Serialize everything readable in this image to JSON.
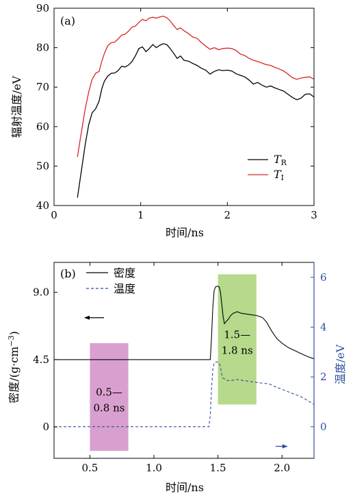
{
  "colors": {
    "black": "#000000",
    "red": "#d62728",
    "blue": "#2b4d9c",
    "pink_box": "#d9a0cf",
    "green_box": "#b7d98b"
  },
  "chart_data": [
    {
      "type": "line",
      "panel_label": "(a)",
      "xlabel": "时间/ns",
      "ylabel": "辐射温度/eV",
      "xlim": [
        0,
        3
      ],
      "ylim": [
        40,
        90
      ],
      "x_ticks": [
        "0",
        "1",
        "2",
        "3"
      ],
      "y_ticks": [
        "40",
        "50",
        "60",
        "70",
        "80",
        "90"
      ],
      "x_tick_values": [
        0,
        1,
        2,
        3
      ],
      "y_tick_values": [
        40,
        50,
        60,
        70,
        80,
        90
      ],
      "legend": {
        "placement": "lower-right",
        "entries": [
          {
            "base": "T",
            "sub": "R"
          },
          {
            "base": "T",
            "sub": "I"
          }
        ]
      },
      "series": [
        {
          "name": "TR",
          "color": "#000000",
          "x": [
            0.27,
            0.3,
            0.33,
            0.36,
            0.4,
            0.44,
            0.48,
            0.52,
            0.55,
            0.58,
            0.62,
            0.66,
            0.7,
            0.74,
            0.78,
            0.82,
            0.86,
            0.9,
            0.94,
            0.98,
            1.02,
            1.06,
            1.1,
            1.14,
            1.18,
            1.22,
            1.26,
            1.3,
            1.34,
            1.38,
            1.42,
            1.46,
            1.5,
            1.55,
            1.6,
            1.65,
            1.7,
            1.75,
            1.8,
            1.85,
            1.9,
            1.95,
            2.0,
            2.05,
            2.1,
            2.15,
            2.2,
            2.25,
            2.3,
            2.35,
            2.4,
            2.45,
            2.5,
            2.55,
            2.6,
            2.65,
            2.7,
            2.75,
            2.8,
            2.85,
            2.9,
            2.95,
            3.0
          ],
          "y": [
            42.0,
            46.5,
            51.0,
            55.5,
            60.5,
            63.5,
            64.5,
            66.5,
            69.5,
            71.5,
            72.8,
            73.5,
            73.6,
            74.2,
            75.3,
            75.1,
            75.6,
            76.5,
            78.0,
            79.8,
            80.2,
            79.0,
            79.8,
            80.8,
            80.0,
            80.6,
            81.0,
            80.8,
            79.8,
            78.6,
            77.3,
            77.9,
            76.8,
            76.6,
            76.0,
            75.5,
            74.8,
            74.3,
            73.3,
            74.0,
            74.4,
            74.2,
            74.3,
            74.1,
            73.4,
            73.0,
            72.6,
            71.8,
            70.8,
            71.2,
            70.5,
            70.0,
            70.3,
            69.8,
            69.4,
            69.0,
            68.2,
            67.4,
            66.8,
            67.2,
            68.2,
            68.3,
            67.5
          ]
        },
        {
          "name": "TI",
          "color": "#d62728",
          "x": [
            0.27,
            0.3,
            0.33,
            0.36,
            0.4,
            0.44,
            0.48,
            0.52,
            0.55,
            0.58,
            0.62,
            0.66,
            0.7,
            0.74,
            0.78,
            0.82,
            0.86,
            0.9,
            0.94,
            0.98,
            1.02,
            1.06,
            1.1,
            1.14,
            1.18,
            1.22,
            1.26,
            1.3,
            1.34,
            1.38,
            1.42,
            1.46,
            1.5,
            1.55,
            1.6,
            1.65,
            1.7,
            1.75,
            1.8,
            1.85,
            1.9,
            1.95,
            2.0,
            2.05,
            2.1,
            2.15,
            2.2,
            2.25,
            2.3,
            2.35,
            2.4,
            2.45,
            2.5,
            2.55,
            2.6,
            2.65,
            2.7,
            2.75,
            2.8,
            2.85,
            2.9,
            2.95,
            3.0
          ],
          "y": [
            52.3,
            56.5,
            60.5,
            64.5,
            68.8,
            72.0,
            73.5,
            74.0,
            76.5,
            78.5,
            80.5,
            81.3,
            81.4,
            82.2,
            83.2,
            83.4,
            84.2,
            85.2,
            85.5,
            86.4,
            87.2,
            86.8,
            87.5,
            87.7,
            87.5,
            87.8,
            88.0,
            87.6,
            86.8,
            85.6,
            84.6,
            85.0,
            84.3,
            83.6,
            82.7,
            82.4,
            81.3,
            80.4,
            79.6,
            80.0,
            79.5,
            79.8,
            79.9,
            79.8,
            79.3,
            78.4,
            78.0,
            77.3,
            76.8,
            76.5,
            76.1,
            75.7,
            75.5,
            75.0,
            74.6,
            74.1,
            73.3,
            72.4,
            72.0,
            72.3,
            72.5,
            72.6,
            72.0
          ]
        }
      ]
    },
    {
      "type": "line",
      "panel_label": "(b)",
      "xlabel": "时间/ns",
      "ylabel_left": "密度/(g·cm",
      "ylabel_left_sup": "−3",
      "ylabel_left_close": ")",
      "ylabel_right": "温度/eV",
      "xlim": [
        0.22,
        2.25
      ],
      "ylim_left": [
        -2.1,
        11.0
      ],
      "ylim_right": [
        -1.27,
        6.6
      ],
      "x_ticks": [
        "0.5",
        "1.0",
        "1.5",
        "2.0"
      ],
      "x_tick_values": [
        0.5,
        1.0,
        1.5,
        2.0
      ],
      "y_ticks_left": [
        "0",
        "4.5",
        "9.0"
      ],
      "y_tick_values_left": [
        0,
        4.5,
        9.0
      ],
      "y_ticks_right": [
        "0",
        "2",
        "4",
        "6"
      ],
      "y_tick_values_right": [
        0,
        2,
        4,
        6
      ],
      "legend": {
        "placement": "top-left",
        "entries": [
          "密度",
          "温度"
        ]
      },
      "shaded_regions": [
        {
          "label_line1": "0.5—",
          "label_line2": "0.8 ns",
          "x": [
            0.5,
            0.8
          ],
          "y_left": [
            -1.6,
            5.6
          ],
          "color": "#d9a0cf"
        },
        {
          "label_line1": "1.5—",
          "label_line2": "1.8 ns",
          "x": [
            1.5,
            1.8
          ],
          "y_left": [
            1.5,
            10.2
          ],
          "color": "#b7d98b"
        }
      ],
      "arrows": [
        {
          "direction": "left",
          "axis": "left",
          "color": "#000000",
          "x": [
            0.61,
            0.46
          ],
          "y_left": 7.3
        },
        {
          "direction": "right",
          "axis": "right",
          "color": "#2b4d9c",
          "x": [
            1.95,
            2.04
          ],
          "y_left": -1.3
        }
      ],
      "series": [
        {
          "name": "密度",
          "axis": "left",
          "color": "#000000",
          "dash": false,
          "x": [
            0.22,
            1.44,
            1.45,
            1.46,
            1.47,
            1.48,
            1.49,
            1.5,
            1.51,
            1.52,
            1.53,
            1.54,
            1.55,
            1.56,
            1.58,
            1.6,
            1.62,
            1.65,
            1.68,
            1.72,
            1.76,
            1.8,
            1.82,
            1.85,
            1.88,
            1.92,
            1.96,
            2.0,
            2.05,
            2.1,
            2.15,
            2.2,
            2.25
          ],
          "y": [
            4.5,
            4.5,
            6.0,
            8.0,
            9.1,
            9.35,
            9.4,
            9.4,
            9.35,
            9.0,
            8.2,
            7.4,
            6.9,
            7.0,
            7.2,
            7.45,
            7.6,
            7.7,
            7.6,
            7.55,
            7.5,
            7.45,
            7.4,
            7.3,
            7.0,
            6.4,
            5.9,
            5.6,
            5.3,
            5.1,
            4.9,
            4.7,
            4.55
          ]
        },
        {
          "name": "温度",
          "axis": "right",
          "color": "#2b4d9c",
          "dash": true,
          "x": [
            0.22,
            1.43,
            1.44,
            1.45,
            1.46,
            1.47,
            1.48,
            1.49,
            1.5,
            1.51,
            1.52,
            1.53,
            1.54,
            1.56,
            1.58,
            1.6,
            1.65,
            1.7,
            1.75,
            1.8,
            1.85,
            1.9,
            1.95,
            2.0,
            2.05,
            2.1,
            2.15,
            2.2,
            2.25
          ],
          "y": [
            0.0,
            0.0,
            0.5,
            1.5,
            2.3,
            2.55,
            2.6,
            2.6,
            2.6,
            2.55,
            2.4,
            2.1,
            1.95,
            1.9,
            1.85,
            1.85,
            1.9,
            1.85,
            1.82,
            1.78,
            1.75,
            1.72,
            1.6,
            1.5,
            1.4,
            1.3,
            1.2,
            1.05,
            0.9
          ]
        }
      ]
    }
  ]
}
